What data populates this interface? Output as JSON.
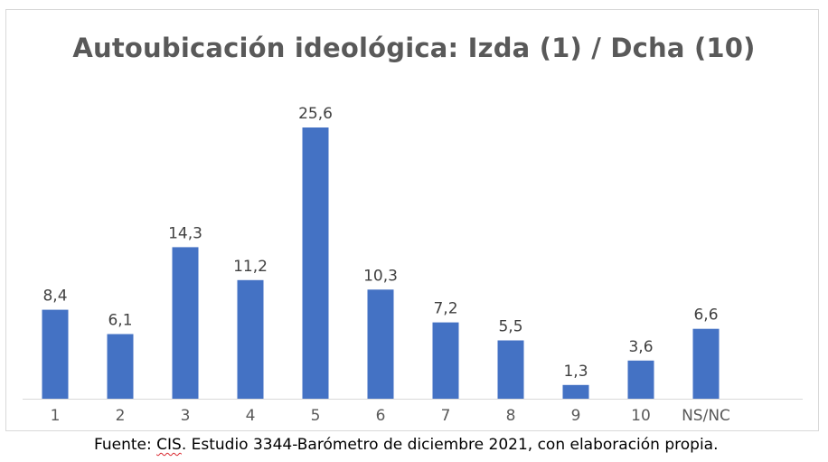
{
  "chart_data": {
    "type": "bar",
    "title": "Autoubicación ideológica: Izda (1) / Dcha (10)",
    "categories": [
      "1",
      "2",
      "3",
      "4",
      "5",
      "6",
      "7",
      "8",
      "9",
      "10",
      "NS/NC"
    ],
    "values": [
      8.4,
      6.1,
      14.3,
      11.2,
      25.6,
      10.3,
      7.2,
      5.5,
      1.3,
      3.6,
      6.6
    ],
    "data_labels": [
      "8,4",
      "6,1",
      "14,3",
      "11,2",
      "25,6",
      "10,3",
      "7,2",
      "5,5",
      "1,3",
      "3,6",
      "6,6"
    ],
    "xlabel": "",
    "ylabel": "",
    "ylim": [
      0,
      25.6
    ],
    "grid": false,
    "legend": "none",
    "bar_color": "#4472c4"
  },
  "source": {
    "prefix": "Fuente: ",
    "cis": "CIS",
    "rest": ". Estudio 3344-Barómetro de diciembre 2021, con elaboración propia."
  }
}
